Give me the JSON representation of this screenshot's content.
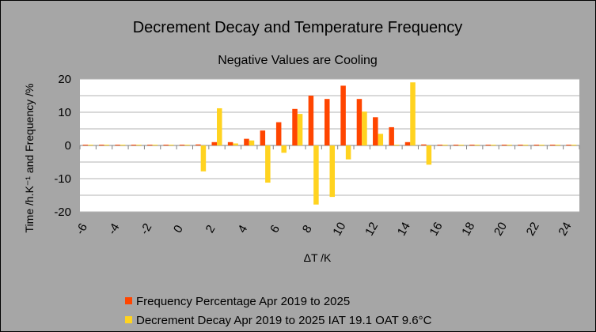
{
  "chart_data": {
    "type": "bar",
    "title": "Decrement Decay and Temperature Frequency",
    "subtitle": "Negative Values are Cooling",
    "xlabel": "ΔT /K",
    "ylabel": "Time /h.K⁻¹ and Frequency /%",
    "ylim": [
      -20,
      20
    ],
    "yticks": [
      -20,
      -10,
      0,
      10,
      20
    ],
    "xticks": [
      -6,
      -4,
      -2,
      0,
      2,
      4,
      6,
      8,
      10,
      12,
      14,
      16,
      18,
      20,
      22,
      24
    ],
    "grid": true,
    "legend_position": "bottom",
    "categories": [
      -6,
      -5,
      -4,
      -3,
      -2,
      -1,
      0,
      1,
      2,
      3,
      4,
      5,
      6,
      7,
      8,
      9,
      10,
      11,
      12,
      13,
      14,
      15,
      16,
      17,
      18,
      19,
      20,
      21,
      22,
      23,
      24
    ],
    "series": [
      {
        "name": "Frequency Percentage Apr 2019 to 2025",
        "color": "#ff4500",
        "values": [
          0,
          0,
          0,
          0,
          0,
          0,
          0,
          0.3,
          1,
          1,
          2,
          4.5,
          7,
          11,
          15,
          14,
          18,
          14,
          8.5,
          5.5,
          1,
          0.3,
          0,
          0,
          0,
          0,
          0,
          0,
          0,
          0,
          0
        ]
      },
      {
        "name": "Decrement Decay Apr 2019 to 2025 IAT 19.1 OAT 9.6°C",
        "color": "#ffd320",
        "values": [
          0,
          0,
          0,
          0,
          0,
          0,
          0,
          -7.8,
          11.2,
          0.6,
          1.5,
          -11.2,
          -2.2,
          9.5,
          -17.8,
          -15.5,
          -4.2,
          10.2,
          3.5,
          0,
          19,
          -5.8,
          0,
          0,
          0,
          0,
          0,
          0,
          0,
          0,
          0
        ]
      }
    ]
  }
}
